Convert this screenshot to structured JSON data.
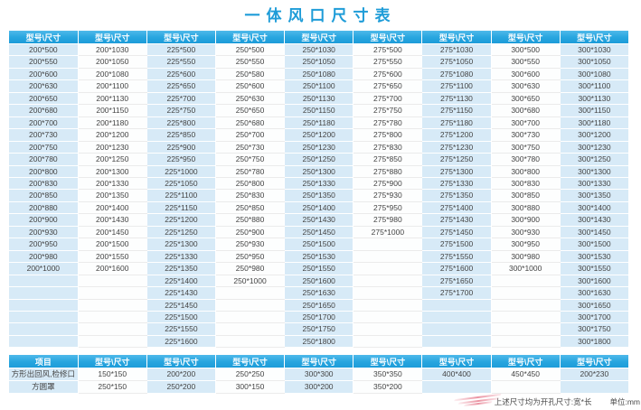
{
  "title": "一体风口尺寸表",
  "main_table": {
    "header_label": "型号\\尺寸",
    "column_count": 9,
    "row_count": 25,
    "columns": [
      [
        "200*500",
        "200*550",
        "200*600",
        "200*630",
        "200*650",
        "200*680",
        "200*700",
        "200*730",
        "200*750",
        "200*780",
        "200*800",
        "200*830",
        "200*850",
        "200*880",
        "200*900",
        "200*930",
        "200*950",
        "200*980",
        "200*1000"
      ],
      [
        "200*1030",
        "200*1050",
        "200*1080",
        "200*1100",
        "200*1130",
        "200*1150",
        "200*1180",
        "200*1200",
        "200*1230",
        "200*1250",
        "200*1300",
        "200*1330",
        "200*1350",
        "200*1400",
        "200*1430",
        "200*1450",
        "200*1500",
        "200*1550",
        "200*1600"
      ],
      [
        "225*500",
        "225*550",
        "225*600",
        "225*650",
        "225*700",
        "225*750",
        "225*800",
        "225*850",
        "225*900",
        "225*950",
        "225*1000",
        "225*1050",
        "225*1100",
        "225*1150",
        "225*1200",
        "225*1250",
        "225*1300",
        "225*1330",
        "225*1350",
        "225*1400",
        "225*1430",
        "225*1450",
        "225*1500",
        "225*1550",
        "225*1600"
      ],
      [
        "250*500",
        "250*550",
        "250*580",
        "250*600",
        "250*630",
        "250*650",
        "250*680",
        "250*700",
        "250*730",
        "250*750",
        "250*780",
        "250*800",
        "250*830",
        "250*850",
        "250*880",
        "250*900",
        "250*930",
        "250*950",
        "250*980",
        "250*1000"
      ],
      [
        "250*1030",
        "250*1050",
        "250*1080",
        "250*1100",
        "250*1130",
        "250*1150",
        "250*1180",
        "250*1200",
        "250*1230",
        "250*1250",
        "250*1300",
        "250*1330",
        "250*1350",
        "250*1400",
        "250*1430",
        "250*1450",
        "250*1500",
        "250*1530",
        "250*1550",
        "250*1600",
        "250*1630",
        "250*1650",
        "250*1700",
        "250*1750",
        "250*1800"
      ],
      [
        "275*500",
        "275*550",
        "275*600",
        "275*650",
        "275*700",
        "275*750",
        "275*780",
        "275*800",
        "275*830",
        "275*850",
        "275*880",
        "275*900",
        "275*930",
        "275*950",
        "275*980",
        "275*1000"
      ],
      [
        "275*1030",
        "275*1050",
        "275*1080",
        "275*1100",
        "275*1130",
        "275*1150",
        "275*1180",
        "275*1200",
        "275*1230",
        "275*1250",
        "275*1300",
        "275*1330",
        "275*1350",
        "275*1400",
        "275*1430",
        "275*1450",
        "275*1500",
        "275*1550",
        "275*1600",
        "275*1650",
        "275*1700"
      ],
      [
        "300*500",
        "300*550",
        "300*600",
        "300*630",
        "300*650",
        "300*680",
        "300*700",
        "300*730",
        "300*750",
        "300*780",
        "300*800",
        "300*830",
        "300*850",
        "300*880",
        "300*900",
        "300*930",
        "300*950",
        "300*980",
        "300*1000"
      ],
      [
        "300*1030",
        "300*1050",
        "300*1080",
        "300*1100",
        "300*1130",
        "300*1150",
        "300*1180",
        "300*1200",
        "300*1230",
        "300*1250",
        "300*1300",
        "300*1330",
        "300*1350",
        "300*1400",
        "300*1430",
        "300*1450",
        "300*1500",
        "300*1530",
        "300*1550",
        "300*1600",
        "300*1630",
        "300*1650",
        "300*1700",
        "300*1750",
        "300*1800"
      ]
    ]
  },
  "bottom_table": {
    "item_header": "项目",
    "size_header": "型号\\尺寸",
    "size_column_count": 8,
    "rows": [
      {
        "label": "方形出回风,检修口",
        "values": [
          "150*150",
          "200*200",
          "250*250",
          "300*300",
          "350*350",
          "400*400",
          "450*450",
          "200*230"
        ]
      },
      {
        "label": "方圆罩",
        "values": [
          "250*150",
          "250*200",
          "300*150",
          "300*200",
          "350*200",
          "",
          "",
          ""
        ]
      }
    ]
  },
  "footer": {
    "note": "上述尺寸均为开孔尺寸:宽*长",
    "unit": "单位:mm"
  },
  "colors": {
    "title_blue": "#1e9cd8",
    "header_blue": "#27a5df",
    "cell_blue": "#d7eaf7",
    "cell_white": "#fdfefe",
    "text": "#444444",
    "watermark_red": "#d62846"
  }
}
